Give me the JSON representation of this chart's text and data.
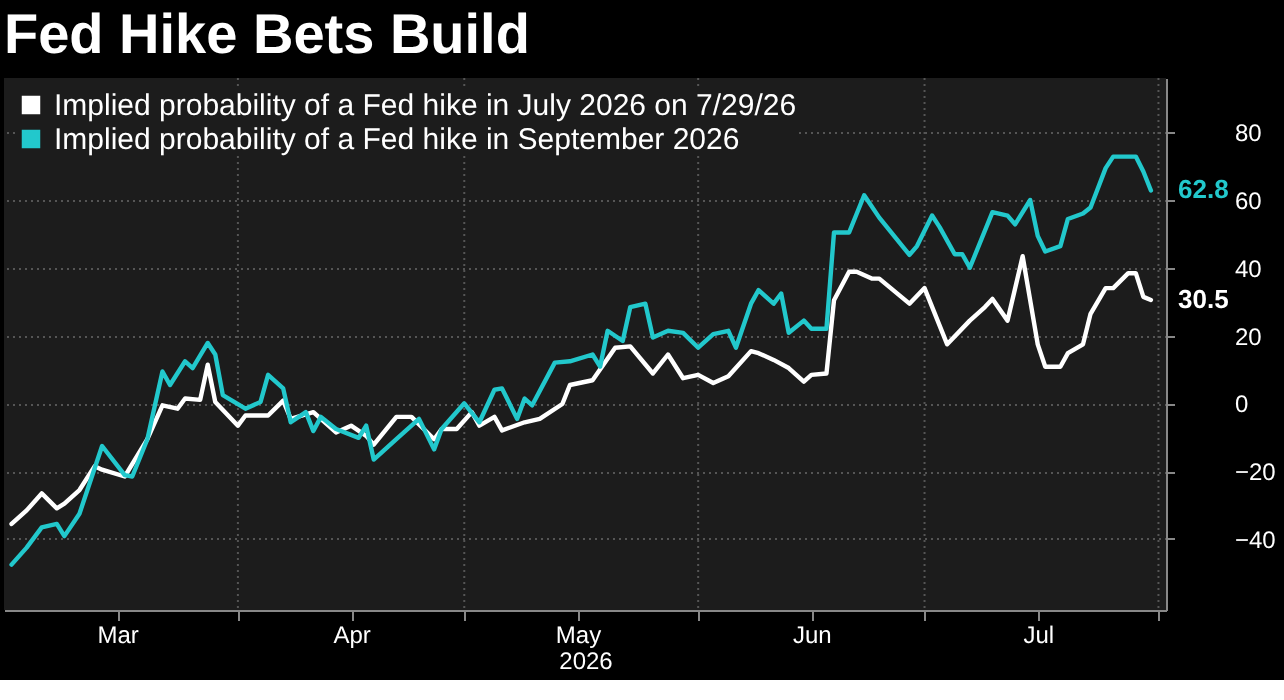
{
  "chart_data": {
    "type": "line",
    "title": "Fed Hike Bets Build",
    "xlabel": "2026",
    "xlim": [
      "2026-03-01",
      "2026-08-02"
    ],
    "xticks": [
      {
        "value": "2026-03-16",
        "label": "Mar"
      },
      {
        "value": "2026-04-01",
        "label": null
      },
      {
        "value": "2026-04-16",
        "label": "Apr"
      },
      {
        "value": "2026-05-01",
        "label": null
      },
      {
        "value": "2026-05-16",
        "label": "May"
      },
      {
        "value": "2026-06-01",
        "label": null
      },
      {
        "value": "2026-06-16",
        "label": "Jun"
      },
      {
        "value": "2026-07-01",
        "label": null
      },
      {
        "value": "2026-07-16",
        "label": "Jul"
      },
      {
        "value": "2026-08-01",
        "label": null
      }
    ],
    "ylim": [
      -61,
      96
    ],
    "yticks": [
      -40,
      -20,
      0,
      20,
      40,
      60,
      80
    ],
    "grid": true,
    "legend": "top left",
    "line_style": "solid",
    "marker": "none",
    "series": [
      {
        "name": "Implied probability of a Fed hike in July 2026 on 7/29/26",
        "color": "#ffffff",
        "x": [
          "2026-03-02",
          "2026-03-04",
          "2026-03-06",
          "2026-03-08",
          "2026-03-09",
          "2026-03-11",
          "2026-03-13",
          "2026-03-14",
          "2026-03-17",
          "2026-03-20",
          "2026-03-22",
          "2026-03-24",
          "2026-03-25",
          "2026-03-27",
          "2026-03-28",
          "2026-03-29",
          "2026-04-01",
          "2026-04-02",
          "2026-04-05",
          "2026-04-07",
          "2026-04-08",
          "2026-04-11",
          "2026-04-14",
          "2026-04-16",
          "2026-04-18",
          "2026-04-19",
          "2026-04-22",
          "2026-04-24",
          "2026-04-27",
          "2026-04-28",
          "2026-04-30",
          "2026-05-02",
          "2026-05-03",
          "2026-05-05",
          "2026-05-06",
          "2026-05-09",
          "2026-05-11",
          "2026-05-14",
          "2026-05-15",
          "2026-05-18",
          "2026-05-21",
          "2026-05-23",
          "2026-05-26",
          "2026-05-28",
          "2026-05-30",
          "2026-06-01",
          "2026-06-03",
          "2026-06-05",
          "2026-06-08",
          "2026-06-09",
          "2026-06-11",
          "2026-06-13",
          "2026-06-15",
          "2026-06-16",
          "2026-06-18",
          "2026-06-19",
          "2026-06-21",
          "2026-06-22",
          "2026-06-24",
          "2026-06-25",
          "2026-06-29",
          "2026-07-01",
          "2026-07-04",
          "2026-07-07",
          "2026-07-09",
          "2026-07-10",
          "2026-07-12",
          "2026-07-14",
          "2026-07-16",
          "2026-07-17",
          "2026-07-19",
          "2026-07-20",
          "2026-07-22",
          "2026-07-23",
          "2026-07-25",
          "2026-07-26",
          "2026-07-28",
          "2026-07-29",
          "2026-07-30",
          "2026-07-31"
        ],
        "values": [
          -35.6,
          -31.6,
          -26.6,
          -31,
          -29.6,
          -25.6,
          -18.6,
          -19.6,
          -21.6,
          -10.6,
          -0.6,
          -1.6,
          1.4,
          1,
          11.4,
          0.4,
          -6.6,
          -3.6,
          -3.6,
          0.8,
          -4.6,
          -2.6,
          -8.6,
          -6.6,
          -9.6,
          -12.2,
          -4,
          -4,
          -10.6,
          -7.6,
          -7.6,
          -2.6,
          -6.6,
          -4,
          -8,
          -5.6,
          -4.6,
          -0.2,
          5.4,
          6.8,
          16.4,
          16.8,
          8.8,
          14.4,
          7.4,
          8.4,
          6,
          8,
          15.4,
          14.8,
          12.8,
          10.4,
          6.4,
          8.4,
          8.8,
          30.4,
          38.8,
          38.8,
          36.8,
          36.8,
          29.4,
          34,
          17.4,
          24.4,
          28.4,
          30.8,
          24.4,
          43.4,
          17.4,
          10.8,
          10.8,
          14.8,
          17.4,
          26.4,
          34,
          34,
          38.4,
          38.4,
          31.4,
          30.5
        ],
        "value_labels": [
          null,
          null,
          null,
          null,
          null,
          null,
          null,
          null,
          null,
          null,
          null,
          null,
          null,
          null,
          null,
          null,
          null,
          null,
          null,
          null,
          null,
          null,
          null,
          null,
          null,
          null,
          null,
          null,
          null,
          null,
          null,
          null,
          null,
          null,
          null,
          null,
          null,
          null,
          null,
          null,
          null,
          null,
          null,
          null,
          null,
          null,
          null,
          null,
          null,
          null,
          null,
          null,
          null,
          null,
          null,
          null,
          null,
          null,
          null,
          null,
          null,
          null,
          null,
          null,
          null,
          null,
          null,
          null,
          null,
          null,
          null,
          null,
          null,
          null,
          null,
          null,
          null,
          null,
          null,
          "30.5"
        ]
      },
      {
        "name": "Implied probability of a Fed hike in September 2026",
        "color": "#22c8cc",
        "x": [
          "2026-03-02",
          "2026-03-04",
          "2026-03-06",
          "2026-03-08",
          "2026-03-09",
          "2026-03-11",
          "2026-03-14",
          "2026-03-17",
          "2026-03-18",
          "2026-03-20",
          "2026-03-22",
          "2026-03-23",
          "2026-03-25",
          "2026-03-26",
          "2026-03-28",
          "2026-03-29",
          "2026-03-30",
          "2026-04-02",
          "2026-04-04",
          "2026-04-05",
          "2026-04-07",
          "2026-04-08",
          "2026-04-10",
          "2026-04-11",
          "2026-04-12",
          "2026-04-14",
          "2026-04-17",
          "2026-04-18",
          "2026-04-19",
          "2026-04-22",
          "2026-04-25",
          "2026-04-27",
          "2026-04-28",
          "2026-05-01",
          "2026-05-03",
          "2026-05-05",
          "2026-05-06",
          "2026-05-08",
          "2026-05-09",
          "2026-05-10",
          "2026-05-13",
          "2026-05-15",
          "2026-05-18",
          "2026-05-19",
          "2026-05-20",
          "2026-05-22",
          "2026-05-23",
          "2026-05-25",
          "2026-05-26",
          "2026-05-28",
          "2026-05-30",
          "2026-06-01",
          "2026-06-03",
          "2026-06-05",
          "2026-06-06",
          "2026-06-08",
          "2026-06-09",
          "2026-06-11",
          "2026-06-12",
          "2026-06-13",
          "2026-06-15",
          "2026-06-16",
          "2026-06-18",
          "2026-06-19",
          "2026-06-21",
          "2026-06-23",
          "2026-06-25",
          "2026-06-29",
          "2026-06-30",
          "2026-07-02",
          "2026-07-03",
          "2026-07-05",
          "2026-07-06",
          "2026-07-07",
          "2026-07-10",
          "2026-07-12",
          "2026-07-13",
          "2026-07-15",
          "2026-07-16",
          "2026-07-17",
          "2026-07-19",
          "2026-07-20",
          "2026-07-22",
          "2026-07-23",
          "2026-07-25",
          "2026-07-26",
          "2026-07-29",
          "2026-07-30",
          "2026-07-31"
        ],
        "values": [
          -47.6,
          -42.6,
          -36.6,
          -35.6,
          -39.2,
          -32.6,
          -12.6,
          -21.2,
          -21.6,
          -10.6,
          9.4,
          5.4,
          12.4,
          10.4,
          17.8,
          14.4,
          2.4,
          -1.6,
          0.4,
          8.4,
          4.4,
          -5.6,
          -2.6,
          -8.2,
          -4,
          -7.6,
          -10.2,
          -6.6,
          -16.6,
          -10.6,
          -4.6,
          -13.6,
          -7.6,
          0,
          -5.6,
          4,
          4.4,
          -4.6,
          1.4,
          -0.6,
          12,
          12.4,
          14.4,
          10.8,
          21.4,
          18.4,
          28.4,
          29.4,
          19.4,
          21.4,
          20.8,
          16.4,
          20.4,
          21.4,
          16.4,
          29.4,
          33.4,
          29.4,
          32.4,
          20.8,
          24.4,
          22,
          22,
          50.4,
          50.4,
          61.4,
          54.8,
          43.8,
          46.4,
          55.4,
          52,
          44,
          44,
          40,
          56.4,
          55.4,
          52.8,
          60,
          49.4,
          44.8,
          46.4,
          54.4,
          56,
          57.8,
          69.4,
          72.8,
          72.8,
          68.4,
          62.8
        ],
        "value_labels": [
          null,
          null,
          null,
          null,
          null,
          null,
          null,
          null,
          null,
          null,
          null,
          null,
          null,
          null,
          null,
          null,
          null,
          null,
          null,
          null,
          null,
          null,
          null,
          null,
          null,
          null,
          null,
          null,
          null,
          null,
          null,
          null,
          null,
          null,
          null,
          null,
          null,
          null,
          null,
          null,
          null,
          null,
          null,
          null,
          null,
          null,
          null,
          null,
          null,
          null,
          null,
          null,
          null,
          null,
          null,
          null,
          null,
          null,
          null,
          null,
          null,
          null,
          null,
          null,
          null,
          null,
          null,
          null,
          null,
          null,
          null,
          null,
          null,
          null,
          null,
          null,
          null,
          null,
          null,
          null,
          null,
          null,
          null,
          null,
          null,
          null,
          null,
          null,
          "62.8"
        ]
      }
    ]
  }
}
